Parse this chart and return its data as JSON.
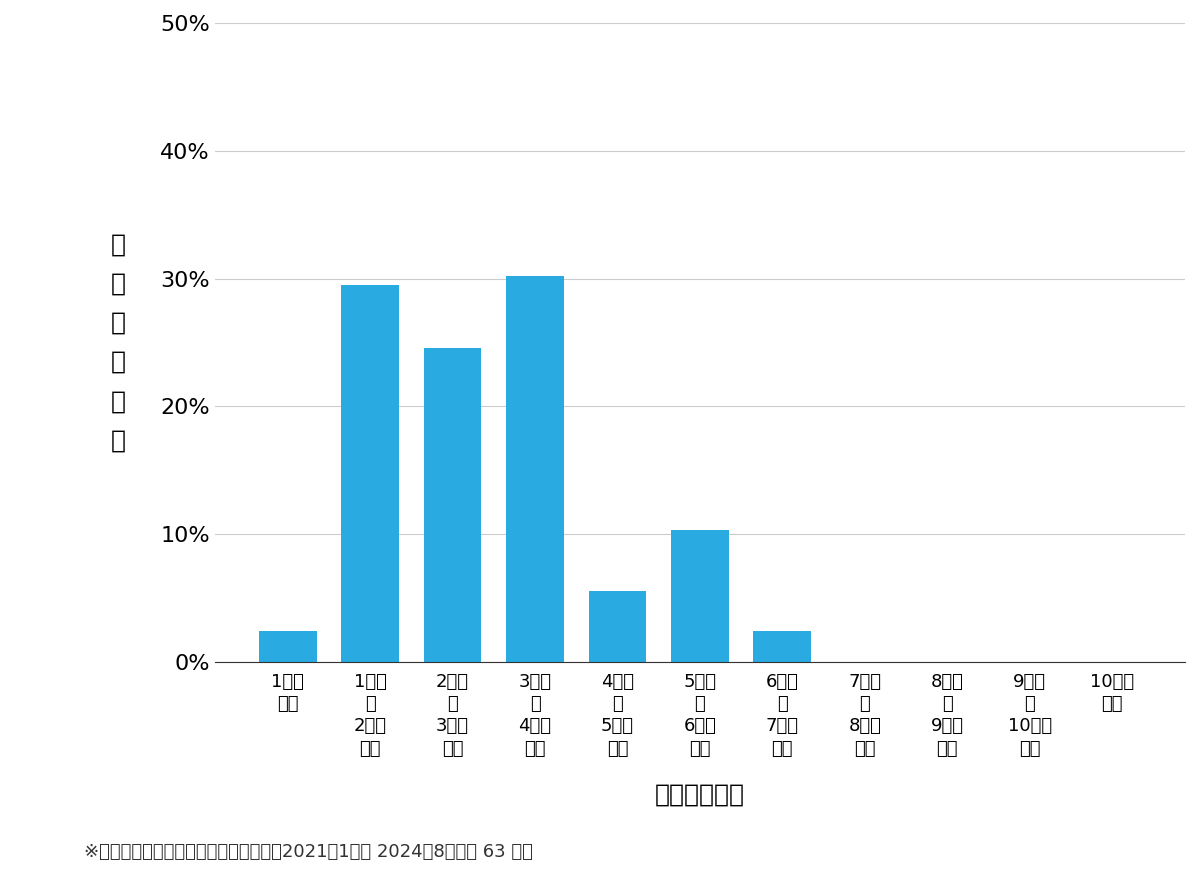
{
  "categories": [
    "1万円\n未満",
    "1万円\n〜\n2万円\n未満",
    "2万円\n〜\n3万円\n未満",
    "3万円\n〜\n4万円\n未満",
    "4万円\n〜\n5万円\n未満",
    "5万円\n〜\n6万円\n未満",
    "6万円\n〜\n7万円\n未満",
    "7万円\n〜\n8万円\n未満",
    "8万円\n〜\n9万円\n未満",
    "9万円\n〜\n10万円\n未満",
    "10万円\n以上"
  ],
  "values": [
    0.0238,
    0.2952,
    0.246,
    0.3016,
    0.0556,
    0.1032,
    0.0238,
    0.0,
    0.0,
    0.0,
    0.0
  ],
  "bar_color": "#29ABE2",
  "ylabel": "費\n用\n帯\nの\n割\n合",
  "xlabel": "費用帯（円）",
  "footnote": "※弊社受付の案件を対象に集計（期間：2021年1月〜 2024年8月、計 63 件）",
  "ylim": [
    0,
    0.5
  ],
  "yticks": [
    0.0,
    0.1,
    0.2,
    0.3,
    0.4,
    0.5
  ],
  "ytick_labels": [
    "0%",
    "10%",
    "20%",
    "30%",
    "40%",
    "50%"
  ],
  "background_color": "#ffffff",
  "grid_color": "#cccccc"
}
